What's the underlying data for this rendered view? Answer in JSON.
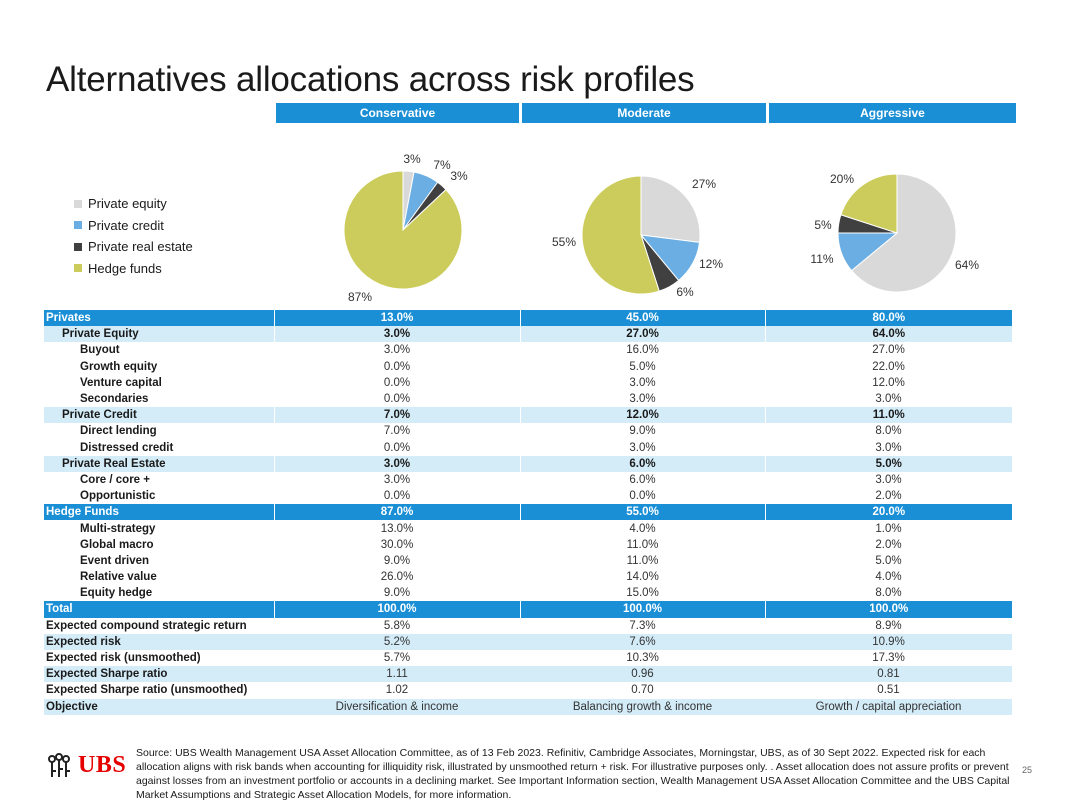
{
  "title": "Alternatives allocations across risk profiles",
  "profiles": [
    "Conservative",
    "Moderate",
    "Aggressive"
  ],
  "legend": [
    {
      "label": "Private equity",
      "color": "#d9d9d9"
    },
    {
      "label": "Private credit",
      "color": "#6aaee3"
    },
    {
      "label": "Private real estate",
      "color": "#404040"
    },
    {
      "label": "Hedge funds",
      "color": "#cccc5c"
    }
  ],
  "chart_data": [
    {
      "type": "pie",
      "title": "Conservative",
      "labels": [
        "Private equity",
        "Private credit",
        "Private real estate",
        "Hedge funds"
      ],
      "values": [
        3,
        7,
        3,
        87
      ],
      "value_labels": [
        "3%",
        "7%",
        "3%",
        "87%"
      ],
      "colors": [
        "#d9d9d9",
        "#6aaee3",
        "#404040",
        "#cccc5c"
      ]
    },
    {
      "type": "pie",
      "title": "Moderate",
      "labels": [
        "Private equity",
        "Private credit",
        "Private real estate",
        "Hedge funds"
      ],
      "values": [
        27,
        12,
        6,
        55
      ],
      "value_labels": [
        "27%",
        "12%",
        "6%",
        "55%"
      ],
      "colors": [
        "#d9d9d9",
        "#6aaee3",
        "#404040",
        "#cccc5c"
      ]
    },
    {
      "type": "pie",
      "title": "Aggressive",
      "labels": [
        "Private equity",
        "Private credit",
        "Private real estate",
        "Hedge funds"
      ],
      "values": [
        64,
        11,
        5,
        20
      ],
      "value_labels": [
        "64%",
        "11%",
        "5%",
        "20%"
      ],
      "colors": [
        "#d9d9d9",
        "#6aaee3",
        "#404040",
        "#cccc5c"
      ]
    },
    {
      "type": "table",
      "columns": [
        "",
        "Conservative",
        "Moderate",
        "Aggressive"
      ],
      "rows": [
        {
          "label": "Privates",
          "level": 0,
          "values": [
            "13.0%",
            "45.0%",
            "80.0%"
          ]
        },
        {
          "label": "Private Equity",
          "level": 1,
          "values": [
            "3.0%",
            "27.0%",
            "64.0%"
          ]
        },
        {
          "label": "Buyout",
          "level": 2,
          "values": [
            "3.0%",
            "16.0%",
            "27.0%"
          ]
        },
        {
          "label": "Growth equity",
          "level": 2,
          "values": [
            "0.0%",
            "5.0%",
            "22.0%"
          ]
        },
        {
          "label": "Venture capital",
          "level": 2,
          "values": [
            "0.0%",
            "3.0%",
            "12.0%"
          ]
        },
        {
          "label": "Secondaries",
          "level": 2,
          "values": [
            "0.0%",
            "3.0%",
            "3.0%"
          ]
        },
        {
          "label": "Private Credit",
          "level": 1,
          "values": [
            "7.0%",
            "12.0%",
            "11.0%"
          ]
        },
        {
          "label": "Direct lending",
          "level": 2,
          "values": [
            "7.0%",
            "9.0%",
            "8.0%"
          ]
        },
        {
          "label": "Distressed credit",
          "level": 2,
          "values": [
            "0.0%",
            "3.0%",
            "3.0%"
          ]
        },
        {
          "label": "Private Real Estate",
          "level": 1,
          "values": [
            "3.0%",
            "6.0%",
            "5.0%"
          ]
        },
        {
          "label": "Core / core +",
          "level": 2,
          "values": [
            "3.0%",
            "6.0%",
            "3.0%"
          ]
        },
        {
          "label": "Opportunistic",
          "level": 2,
          "values": [
            "0.0%",
            "0.0%",
            "2.0%"
          ]
        },
        {
          "label": "Hedge Funds",
          "level": 0,
          "values": [
            "87.0%",
            "55.0%",
            "20.0%"
          ]
        },
        {
          "label": "Multi-strategy",
          "level": 2,
          "values": [
            "13.0%",
            "4.0%",
            "1.0%"
          ]
        },
        {
          "label": "Global macro",
          "level": 2,
          "values": [
            "30.0%",
            "11.0%",
            "2.0%"
          ]
        },
        {
          "label": "Event driven",
          "level": 2,
          "values": [
            "9.0%",
            "11.0%",
            "5.0%"
          ]
        },
        {
          "label": "Relative value",
          "level": 2,
          "values": [
            "26.0%",
            "14.0%",
            "4.0%"
          ]
        },
        {
          "label": "Equity hedge",
          "level": 2,
          "values": [
            "9.0%",
            "15.0%",
            "8.0%"
          ]
        },
        {
          "label": "Total",
          "level": 0,
          "values": [
            "100.0%",
            "100.0%",
            "100.0%"
          ]
        },
        {
          "label": "Expected compound strategic return",
          "level": 3,
          "shade": false,
          "values": [
            "5.8%",
            "7.3%",
            "8.9%"
          ]
        },
        {
          "label": "Expected risk",
          "level": 3,
          "shade": true,
          "values": [
            "5.2%",
            "7.6%",
            "10.9%"
          ]
        },
        {
          "label": "Expected risk (unsmoothed)",
          "level": 3,
          "shade": false,
          "values": [
            "5.7%",
            "10.3%",
            "17.3%"
          ]
        },
        {
          "label": "Expected Sharpe ratio",
          "level": 3,
          "shade": true,
          "values": [
            "1.11",
            "0.96",
            "0.81"
          ]
        },
        {
          "label": "Expected Sharpe ratio (unsmoothed)",
          "level": 3,
          "shade": false,
          "values": [
            "1.02",
            "0.70",
            "0.51"
          ]
        },
        {
          "label": "Objective",
          "level": 3,
          "shade": true,
          "values": [
            "Diversification & income",
            "Balancing growth & income",
            "Growth / capital appreciation"
          ]
        }
      ]
    }
  ],
  "logo_text": "UBS",
  "source_text": "Source:  UBS Wealth Management USA Asset Allocation Committee, as of 13 Feb 2023. Refinitiv, Cambridge Associates, Morningstar, UBS, as of 30 Sept 2022. Expected risk for each allocation aligns with risk bands when accounting for illiquidity risk, illustrated by unsmoothed return + risk.  For illustrative purposes only. . Asset allocation does not assure profits or prevent against losses from an investment portfolio or accounts in a declining market. See Important Information section, Wealth Management USA Asset Allocation Committee and the UBS Capital Market Assumptions and Strategic Asset Allocation Models, for more information.",
  "page_number": "25"
}
